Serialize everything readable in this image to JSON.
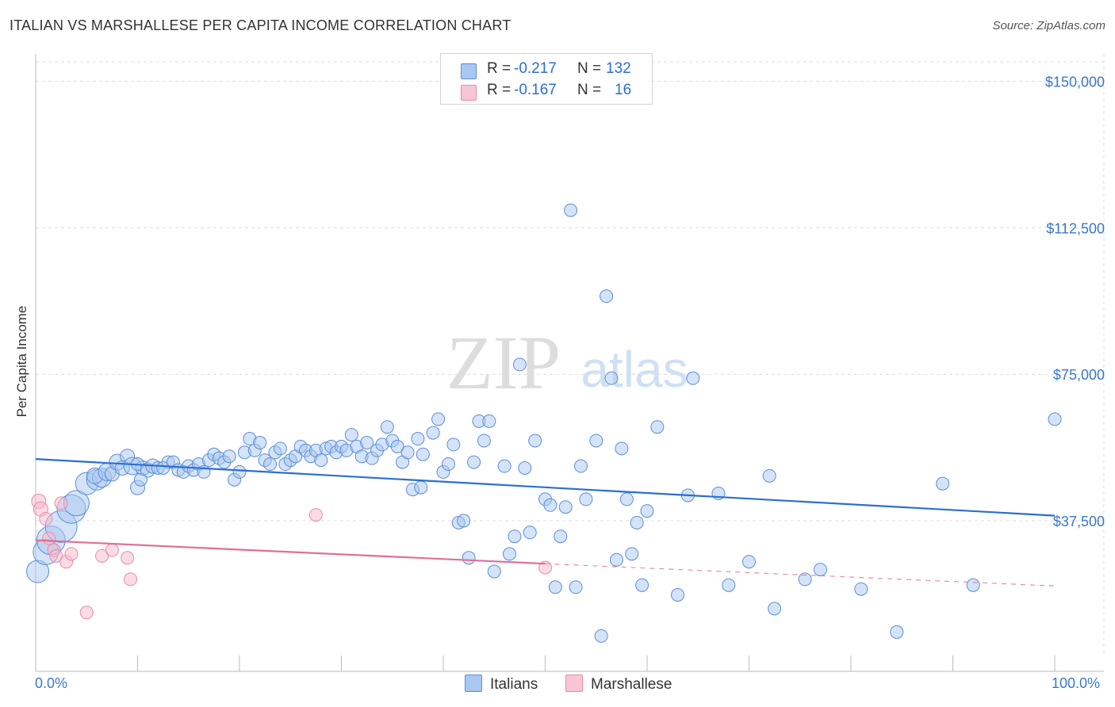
{
  "title": "ITALIAN VS MARSHALLESE PER CAPITA INCOME CORRELATION CHART",
  "source": "Source: ZipAtlas.com",
  "watermark": {
    "zip": "ZIP",
    "atlas": "atlas"
  },
  "legend": {
    "italians": {
      "r_label": "R =",
      "r_value": "-0.217",
      "n_label": "N =",
      "n_value": "132"
    },
    "marshallese": {
      "r_label": "R =",
      "r_value": "-0.167",
      "n_label": "N =",
      "n_value": "16"
    }
  },
  "x_tick_labels": {
    "left": "0.0%",
    "right": "100.0%"
  },
  "colors": {
    "blue_fill": "#a9c8f0",
    "blue_stroke": "#5b8fd6",
    "blue_line": "#2a6fd0",
    "pink_fill": "#f7b9cb",
    "pink_stroke": "#e88aa7",
    "pink_line": "#e06f98",
    "tick_text": "#3b78c8",
    "grid": "#dcdcdc"
  },
  "chart_data": {
    "type": "scatter",
    "title": "ITALIAN VS MARSHALLESE PER CAPITA INCOME CORRELATION CHART",
    "xlabel": "",
    "ylabel": "Per Capita Income",
    "xlim": [
      0,
      100
    ],
    "ylim": [
      3000,
      155000
    ],
    "y_ticks": [
      37500,
      75000,
      112500,
      150000
    ],
    "y_tick_labels": [
      "$37,500",
      "$75,000",
      "$112,500",
      "$150,000"
    ],
    "legend_position": "bottom-center",
    "series": [
      {
        "name": "Italians",
        "r": -0.217,
        "n": 132,
        "trend": {
          "x": [
            0,
            100
          ],
          "y": [
            53300,
            38800
          ]
        },
        "points": [
          [
            0.2,
            24500,
            14
          ],
          [
            1.0,
            29500,
            16
          ],
          [
            1.5,
            32500,
            18
          ],
          [
            2.5,
            36000,
            20
          ],
          [
            3.5,
            40500,
            18
          ],
          [
            4.0,
            42000,
            16
          ],
          [
            5.0,
            47000,
            14
          ],
          [
            6.0,
            48000,
            13
          ],
          [
            6.5,
            48500,
            12
          ],
          [
            5.8,
            49000,
            10
          ],
          [
            7.0,
            50000,
            11
          ],
          [
            7.5,
            49500,
            9
          ],
          [
            8.0,
            52500,
            10
          ],
          [
            9.0,
            54000,
            9
          ],
          [
            8.5,
            51000,
            9
          ],
          [
            9.5,
            51500,
            11
          ],
          [
            10.5,
            51000,
            9
          ],
          [
            10.0,
            52000,
            8
          ],
          [
            11.0,
            50500,
            9
          ],
          [
            10.0,
            46000,
            9
          ],
          [
            10.3,
            48000,
            8
          ],
          [
            11.5,
            51500,
            9
          ],
          [
            12.0,
            51000,
            8
          ],
          [
            13.0,
            52500,
            8
          ],
          [
            12.5,
            51000,
            8
          ],
          [
            13.5,
            52500,
            8
          ],
          [
            14.0,
            50500,
            8
          ],
          [
            14.5,
            50000,
            8
          ],
          [
            15.0,
            51500,
            8
          ],
          [
            15.5,
            50500,
            8
          ],
          [
            16.0,
            52000,
            8
          ],
          [
            16.5,
            50000,
            8
          ],
          [
            17.0,
            53000,
            8
          ],
          [
            17.5,
            54500,
            8
          ],
          [
            18.0,
            53500,
            8
          ],
          [
            18.5,
            52500,
            8
          ],
          [
            19.0,
            54000,
            8
          ],
          [
            19.5,
            48000,
            8
          ],
          [
            20.0,
            50000,
            8
          ],
          [
            20.5,
            55000,
            8
          ],
          [
            21.0,
            58500,
            8
          ],
          [
            21.5,
            55500,
            8
          ],
          [
            22.0,
            57500,
            8
          ],
          [
            22.5,
            53000,
            8
          ],
          [
            23.0,
            52000,
            8
          ],
          [
            23.5,
            55000,
            8
          ],
          [
            24.0,
            56000,
            8
          ],
          [
            24.5,
            52000,
            8
          ],
          [
            25.0,
            53000,
            8
          ],
          [
            25.5,
            54000,
            8
          ],
          [
            26.0,
            56500,
            8
          ],
          [
            26.5,
            55500,
            8
          ],
          [
            27.0,
            54000,
            8
          ],
          [
            27.5,
            55500,
            8
          ],
          [
            28.0,
            53000,
            8
          ],
          [
            28.5,
            56000,
            8
          ],
          [
            29.0,
            56500,
            8
          ],
          [
            29.5,
            55000,
            8
          ],
          [
            30.0,
            56500,
            8
          ],
          [
            30.5,
            55500,
            8
          ],
          [
            31.0,
            59500,
            8
          ],
          [
            31.5,
            56500,
            8
          ],
          [
            32.0,
            54000,
            8
          ],
          [
            32.5,
            57500,
            8
          ],
          [
            33.0,
            53500,
            8
          ],
          [
            33.5,
            55500,
            8
          ],
          [
            34.0,
            57000,
            8
          ],
          [
            34.5,
            61500,
            8
          ],
          [
            35.0,
            58000,
            8
          ],
          [
            35.5,
            56500,
            8
          ],
          [
            36.0,
            52500,
            8
          ],
          [
            36.5,
            55000,
            8
          ],
          [
            37.0,
            45500,
            8
          ],
          [
            37.5,
            58500,
            8
          ],
          [
            38.0,
            54500,
            8
          ],
          [
            37.8,
            46000,
            8
          ],
          [
            39.0,
            60000,
            8
          ],
          [
            39.5,
            63500,
            8
          ],
          [
            40.0,
            50000,
            8
          ],
          [
            40.5,
            52000,
            8
          ],
          [
            41.0,
            57000,
            8
          ],
          [
            41.5,
            37000,
            8
          ],
          [
            42.0,
            37500,
            8
          ],
          [
            42.5,
            28000,
            8
          ],
          [
            43.0,
            52500,
            8
          ],
          [
            43.5,
            63000,
            8
          ],
          [
            44.0,
            58000,
            8
          ],
          [
            44.5,
            63000,
            8
          ],
          [
            45.0,
            24500,
            8
          ],
          [
            46.0,
            51500,
            8
          ],
          [
            46.5,
            29000,
            8
          ],
          [
            47.0,
            33500,
            8
          ],
          [
            47.5,
            77500,
            8
          ],
          [
            48.0,
            51000,
            8
          ],
          [
            48.5,
            34500,
            8
          ],
          [
            49.0,
            58000,
            8
          ],
          [
            50.0,
            43000,
            8
          ],
          [
            50.5,
            41500,
            8
          ],
          [
            51.0,
            20500,
            8
          ],
          [
            51.5,
            33500,
            8
          ],
          [
            52.0,
            41000,
            8
          ],
          [
            52.5,
            117000,
            8
          ],
          [
            53.0,
            20500,
            8
          ],
          [
            53.5,
            51500,
            8
          ],
          [
            54.0,
            43000,
            8
          ],
          [
            55.0,
            58000,
            8
          ],
          [
            55.5,
            8000,
            8
          ],
          [
            56.0,
            95000,
            8
          ],
          [
            57.0,
            27500,
            8
          ],
          [
            57.5,
            56000,
            8
          ],
          [
            58.0,
            43000,
            8
          ],
          [
            58.5,
            29000,
            8
          ],
          [
            59.0,
            37000,
            8
          ],
          [
            59.5,
            21000,
            8
          ],
          [
            60.0,
            40000,
            8
          ],
          [
            56.5,
            74000,
            8
          ],
          [
            61.0,
            61500,
            8
          ],
          [
            63.0,
            18500,
            8
          ],
          [
            64.0,
            44000,
            8
          ],
          [
            64.5,
            74000,
            8
          ],
          [
            67.0,
            44500,
            8
          ],
          [
            68.0,
            21000,
            8
          ],
          [
            70.0,
            27000,
            8
          ],
          [
            72.0,
            49000,
            8
          ],
          [
            72.5,
            15000,
            8
          ],
          [
            75.5,
            22500,
            8
          ],
          [
            77.0,
            25000,
            8
          ],
          [
            81.0,
            20000,
            8
          ],
          [
            84.5,
            9000,
            8
          ],
          [
            89.0,
            47000,
            8
          ],
          [
            92.0,
            21000,
            8
          ],
          [
            100.0,
            63500,
            8
          ]
        ]
      },
      {
        "name": "Marshallese",
        "r": -0.167,
        "n": 16,
        "trend": {
          "x": [
            0,
            50
          ],
          "y": [
            32500,
            26500
          ]
        },
        "trend_dashed": {
          "x": [
            50,
            100
          ],
          "y": [
            26500,
            20800
          ]
        },
        "points": [
          [
            0.3,
            42500,
            9
          ],
          [
            0.5,
            40500,
            9
          ],
          [
            1.0,
            38000,
            8
          ],
          [
            1.3,
            33000,
            8
          ],
          [
            1.8,
            30000,
            8
          ],
          [
            2.0,
            28500,
            8
          ],
          [
            2.5,
            42000,
            8
          ],
          [
            3.0,
            27000,
            8
          ],
          [
            3.5,
            29000,
            8
          ],
          [
            5.0,
            14000,
            8
          ],
          [
            6.5,
            28500,
            8
          ],
          [
            7.5,
            30000,
            8
          ],
          [
            9.0,
            28000,
            8
          ],
          [
            9.3,
            22500,
            8
          ],
          [
            27.5,
            39000,
            8
          ],
          [
            50.0,
            25500,
            8
          ]
        ]
      }
    ]
  }
}
